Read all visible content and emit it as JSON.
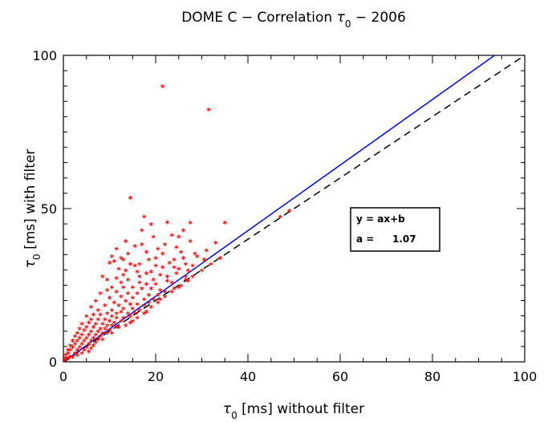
{
  "chart_data": {
    "type": "scatter",
    "title": {
      "prefix": "DOME C − Correlation ",
      "symbol": "τ",
      "sub": "0",
      "suffix": " − 2006"
    },
    "xlabel": {
      "symbol": "τ",
      "sub": "0",
      "suffix": " [ms] without filter"
    },
    "ylabel": {
      "symbol": "τ",
      "sub": "0",
      "suffix": " [ms] with filter"
    },
    "xlim": [
      0,
      100
    ],
    "ylim": [
      0,
      100
    ],
    "xticks": [
      "0",
      "20",
      "40",
      "60",
      "80",
      "100"
    ],
    "yticks": [
      "0",
      "50",
      "100"
    ],
    "grid": false,
    "marker": "*",
    "colors": {
      "points": "#ff0000",
      "fit": "#0000ff",
      "identity": "#000000"
    },
    "fit_line": {
      "slope": 1.07,
      "intercept": 0
    },
    "identity_line": {
      "slope": 1,
      "intercept": 0
    },
    "legend": {
      "position": "center-right",
      "line1": "y = ax+b",
      "line2_label": "a =",
      "line2_value": "1.07"
    },
    "points": [
      [
        21.5,
        89.5
      ],
      [
        31.5,
        82.0
      ],
      [
        14.5,
        53.2
      ],
      [
        49.0,
        49.0
      ],
      [
        47.0,
        47.0
      ],
      [
        17.5,
        47.0
      ],
      [
        22.5,
        45.2
      ],
      [
        27.5,
        45.0
      ],
      [
        35.0,
        45.0
      ],
      [
        19.0,
        44.5
      ],
      [
        17.0,
        42.5
      ],
      [
        26.0,
        42.5
      ],
      [
        25.0,
        40.5
      ],
      [
        27.5,
        39.0
      ],
      [
        22.0,
        38.0
      ],
      [
        24.5,
        37.0
      ],
      [
        11.5,
        36.5
      ],
      [
        20.5,
        36.5
      ],
      [
        14.0,
        35.0
      ],
      [
        28.5,
        35.0
      ],
      [
        10.5,
        34.0
      ],
      [
        12.5,
        33.5
      ],
      [
        13.0,
        33.0
      ],
      [
        18.5,
        33.0
      ],
      [
        24.0,
        33.0
      ],
      [
        11.0,
        32.5
      ],
      [
        10.0,
        32.0
      ],
      [
        26.5,
        31.5
      ],
      [
        14.5,
        31.5
      ],
      [
        16.5,
        31.5
      ],
      [
        15.5,
        31.0
      ],
      [
        20.0,
        31.0
      ],
      [
        21.5,
        30.5
      ],
      [
        25.0,
        30.0
      ],
      [
        27.0,
        29.5
      ],
      [
        13.5,
        29.5
      ],
      [
        16.0,
        29.0
      ],
      [
        18.0,
        28.5
      ],
      [
        8.5,
        27.5
      ],
      [
        13.0,
        28.0
      ],
      [
        21.0,
        28.0
      ],
      [
        24.5,
        28.5
      ],
      [
        26.5,
        27.5
      ],
      [
        11.5,
        27.0
      ],
      [
        14.0,
        26.5
      ],
      [
        19.5,
        26.5
      ],
      [
        22.5,
        26.0
      ],
      [
        12.5,
        25.5
      ],
      [
        16.5,
        25.5
      ],
      [
        18.0,
        25.0
      ],
      [
        20.0,
        25.0
      ],
      [
        23.5,
        25.5
      ],
      [
        25.5,
        24.5
      ],
      [
        10.5,
        24.0
      ],
      [
        13.0,
        24.0
      ],
      [
        15.0,
        24.0
      ],
      [
        17.0,
        23.5
      ],
      [
        19.0,
        23.5
      ],
      [
        21.0,
        23.0
      ],
      [
        22.0,
        22.5
      ],
      [
        9.5,
        23.0
      ],
      [
        11.5,
        22.5
      ],
      [
        14.0,
        22.0
      ],
      [
        16.0,
        22.0
      ],
      [
        18.5,
        21.5
      ],
      [
        20.5,
        21.5
      ],
      [
        12.5,
        21.0
      ],
      [
        15.0,
        20.5
      ],
      [
        17.5,
        20.0
      ],
      [
        19.5,
        20.0
      ],
      [
        10.0,
        20.5
      ],
      [
        11.0,
        19.0
      ],
      [
        13.5,
        19.5
      ],
      [
        14.5,
        18.5
      ],
      [
        16.0,
        18.5
      ],
      [
        17.5,
        18.0
      ],
      [
        18.5,
        19.0
      ],
      [
        9.0,
        18.0
      ],
      [
        12.0,
        18.0
      ],
      [
        13.0,
        17.0
      ],
      [
        15.0,
        17.0
      ],
      [
        16.5,
        16.5
      ],
      [
        7.5,
        16.5
      ],
      [
        10.5,
        16.5
      ],
      [
        11.5,
        15.5
      ],
      [
        12.5,
        16.0
      ],
      [
        14.0,
        15.5
      ],
      [
        15.5,
        15.5
      ],
      [
        6.5,
        15.0
      ],
      [
        8.0,
        15.0
      ],
      [
        9.5,
        15.5
      ],
      [
        10.5,
        14.5
      ],
      [
        11.5,
        14.0
      ],
      [
        13.0,
        14.0
      ],
      [
        14.5,
        14.5
      ],
      [
        6.0,
        13.5
      ],
      [
        7.5,
        13.5
      ],
      [
        9.0,
        13.5
      ],
      [
        10.0,
        13.0
      ],
      [
        11.0,
        12.5
      ],
      [
        12.5,
        13.0
      ],
      [
        5.5,
        12.5
      ],
      [
        7.0,
        12.0
      ],
      [
        8.5,
        12.0
      ],
      [
        9.5,
        11.5
      ],
      [
        10.5,
        11.5
      ],
      [
        11.5,
        11.0
      ],
      [
        5.0,
        11.0
      ],
      [
        6.5,
        11.0
      ],
      [
        8.0,
        10.5
      ],
      [
        9.0,
        10.5
      ],
      [
        10.0,
        10.0
      ],
      [
        3.0,
        9.0
      ],
      [
        4.5,
        10.0
      ],
      [
        6.0,
        9.5
      ],
      [
        7.5,
        9.5
      ],
      [
        8.5,
        9.0
      ],
      [
        9.5,
        9.0
      ],
      [
        4.0,
        8.5
      ],
      [
        5.5,
        8.5
      ],
      [
        7.0,
        8.5
      ],
      [
        8.0,
        8.0
      ],
      [
        3.5,
        7.5
      ],
      [
        5.0,
        7.5
      ],
      [
        6.5,
        7.5
      ],
      [
        7.5,
        7.0
      ],
      [
        3.0,
        6.5
      ],
      [
        4.5,
        6.5
      ],
      [
        6.0,
        6.5
      ],
      [
        7.0,
        6.0
      ],
      [
        2.5,
        5.5
      ],
      [
        4.0,
        5.5
      ],
      [
        5.5,
        5.5
      ],
      [
        6.5,
        5.0
      ],
      [
        2.0,
        4.5
      ],
      [
        3.5,
        4.5
      ],
      [
        5.0,
        4.5
      ],
      [
        6.0,
        4.0
      ],
      [
        1.5,
        3.5
      ],
      [
        3.0,
        3.5
      ],
      [
        4.5,
        3.5
      ],
      [
        5.5,
        3.0
      ],
      [
        1.0,
        2.5
      ],
      [
        2.5,
        2.5
      ],
      [
        4.0,
        2.5
      ],
      [
        1.5,
        1.5
      ],
      [
        3.0,
        1.8
      ],
      [
        0.5,
        1.0
      ],
      [
        1.0,
        0.8
      ],
      [
        2.0,
        1.2
      ],
      [
        0.3,
        0.3
      ],
      [
        0.8,
        0.5
      ],
      [
        12.0,
        10.8
      ],
      [
        14.5,
        12.5
      ],
      [
        16.0,
        14.0
      ],
      [
        17.5,
        15.5
      ],
      [
        19.0,
        17.5
      ],
      [
        20.5,
        19.0
      ],
      [
        22.0,
        21.0
      ],
      [
        23.5,
        22.5
      ],
      [
        25.0,
        24.0
      ],
      [
        26.5,
        26.5
      ],
      [
        28.0,
        27.5
      ],
      [
        30.0,
        29.5
      ],
      [
        8.5,
        7.0
      ],
      [
        10.5,
        9.0
      ],
      [
        13.5,
        11.5
      ],
      [
        15.0,
        13.0
      ],
      [
        18.0,
        16.0
      ],
      [
        21.0,
        20.0
      ],
      [
        24.0,
        23.5
      ],
      [
        27.0,
        26.0
      ],
      [
        32.0,
        31.5
      ],
      [
        34.0,
        33.5
      ],
      [
        29.0,
        34.0
      ],
      [
        31.0,
        36.0
      ],
      [
        33.0,
        38.5
      ],
      [
        23.0,
        32.0
      ],
      [
        19.0,
        29.0
      ],
      [
        16.5,
        27.5
      ],
      [
        12.0,
        30.0
      ],
      [
        9.5,
        26.5
      ],
      [
        8.0,
        22.0
      ],
      [
        7.0,
        19.5
      ],
      [
        6.0,
        17.5
      ],
      [
        5.0,
        14.5
      ],
      [
        4.0,
        12.0
      ],
      [
        3.5,
        10.5
      ],
      [
        2.5,
        8.0
      ],
      [
        2.0,
        6.5
      ],
      [
        1.5,
        5.0
      ],
      [
        1.0,
        3.5
      ],
      [
        0.5,
        2.0
      ],
      [
        22.5,
        27.5
      ],
      [
        24.0,
        30.5
      ],
      [
        26.0,
        33.5
      ],
      [
        20.0,
        33.5
      ],
      [
        18.0,
        35.5
      ],
      [
        15.5,
        37.5
      ],
      [
        13.5,
        39.0
      ],
      [
        23.5,
        41.0
      ],
      [
        25.5,
        35.5
      ],
      [
        28.0,
        31.0
      ],
      [
        30.5,
        33.0
      ],
      [
        17.0,
        38.0
      ],
      [
        21.5,
        35.0
      ],
      [
        19.5,
        40.5
      ]
    ]
  }
}
